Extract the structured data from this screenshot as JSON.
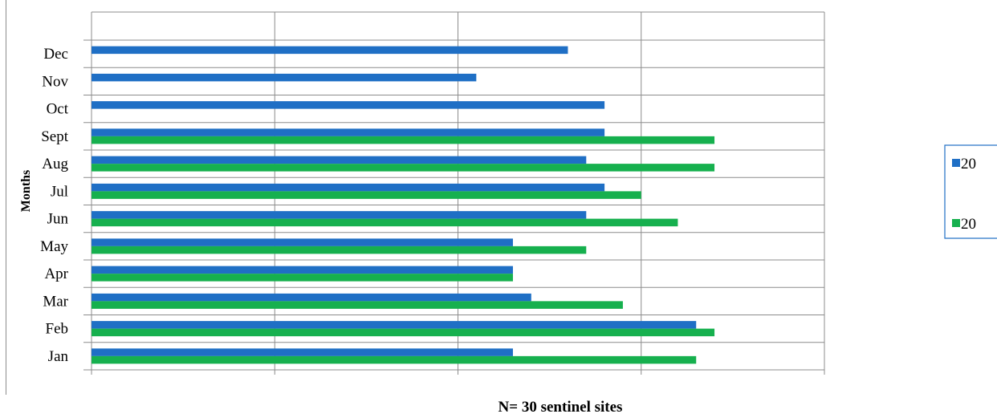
{
  "chart_data": {
    "type": "bar",
    "orientation": "horizontal",
    "categories": [
      "Jan",
      "Feb",
      "Mar",
      "Apr",
      "May",
      "Jun",
      "Jul",
      "Aug",
      "Sept",
      "Oct",
      "Nov",
      "Dec"
    ],
    "series": [
      {
        "name": "20",
        "color": "#1f6fc5",
        "values": [
          23,
          33,
          24,
          23,
          23,
          27,
          28,
          27,
          28,
          28,
          21,
          26
        ]
      },
      {
        "name": "20",
        "color": "#16b04e",
        "values": [
          33,
          34,
          29,
          23,
          27,
          32,
          30,
          34,
          34,
          null,
          null,
          null
        ]
      }
    ],
    "xlim": [
      0,
      40
    ],
    "x_gridlines": [
      0,
      10,
      20,
      30,
      40
    ],
    "ylabel": "Months",
    "xlabel": "N= 30 sentinel sites",
    "grid": true,
    "legend_position": "right"
  }
}
